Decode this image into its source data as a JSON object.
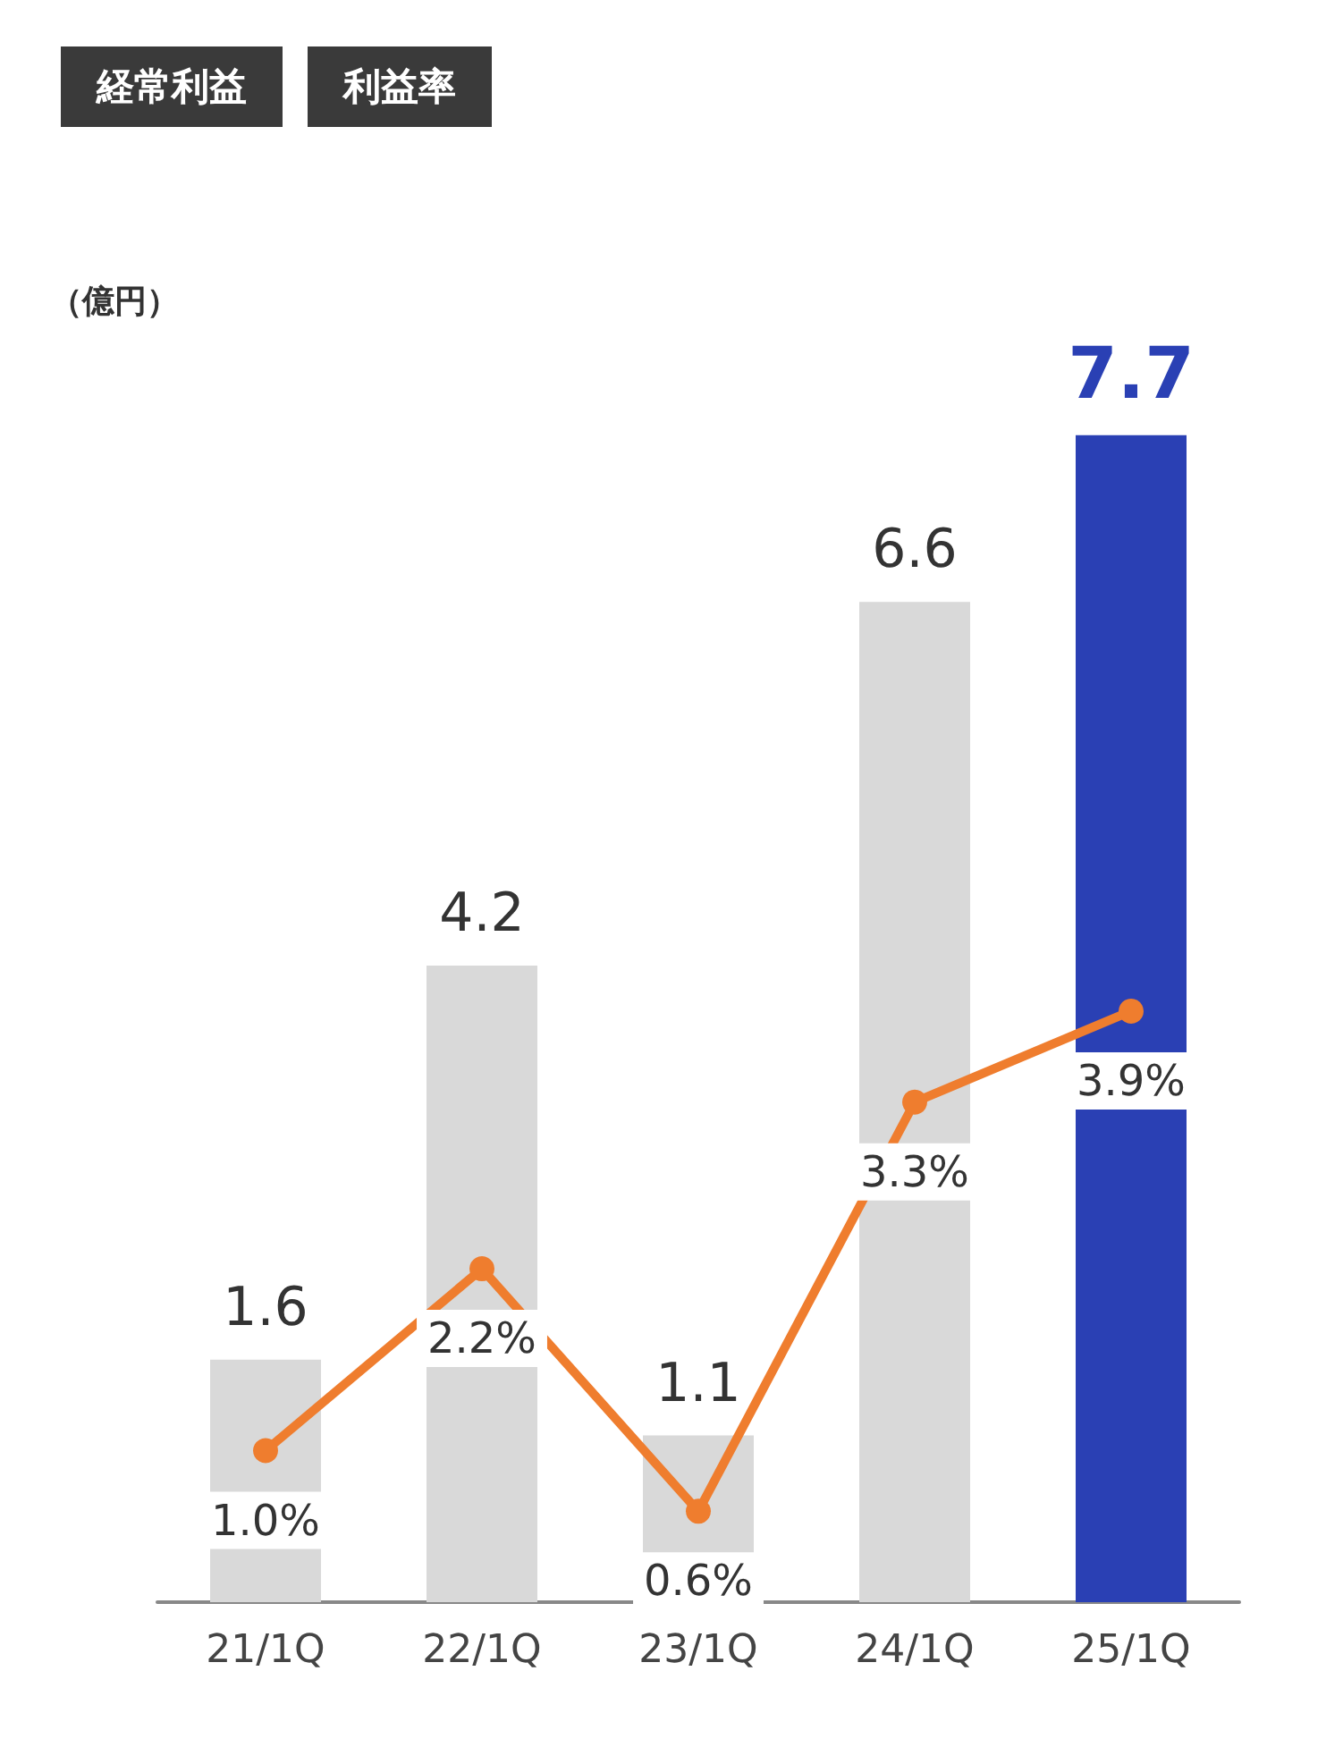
{
  "chart_data": {
    "type": "bar",
    "ylabel": "（億円）",
    "annotations": [
      "経常利益",
      "利益率"
    ],
    "categories": [
      "21/1Q",
      "22/1Q",
      "23/1Q",
      "24/1Q",
      "25/1Q"
    ],
    "series": [
      {
        "colors": [
          "#d9d9d9",
          "#d9d9d9",
          "#d9d9d9",
          "#d9d9d9",
          "#2a40b4"
        ],
        "values": [
          1.6,
          4.2,
          1.1,
          6.6,
          7.7
        ],
        "value_labels": [
          "1.6",
          "4.2",
          "1.1",
          "6.6",
          "7.7"
        ]
      },
      {
        "type": "line",
        "color": "#ef7d2e",
        "values": [
          1.0,
          2.2,
          0.6,
          3.3,
          3.9
        ],
        "value_labels": [
          "1.0%",
          "2.2%",
          "0.6%",
          "3.3%",
          "3.9%"
        ],
        "marker": "circle"
      }
    ],
    "relative": false,
    "grid": false
  }
}
